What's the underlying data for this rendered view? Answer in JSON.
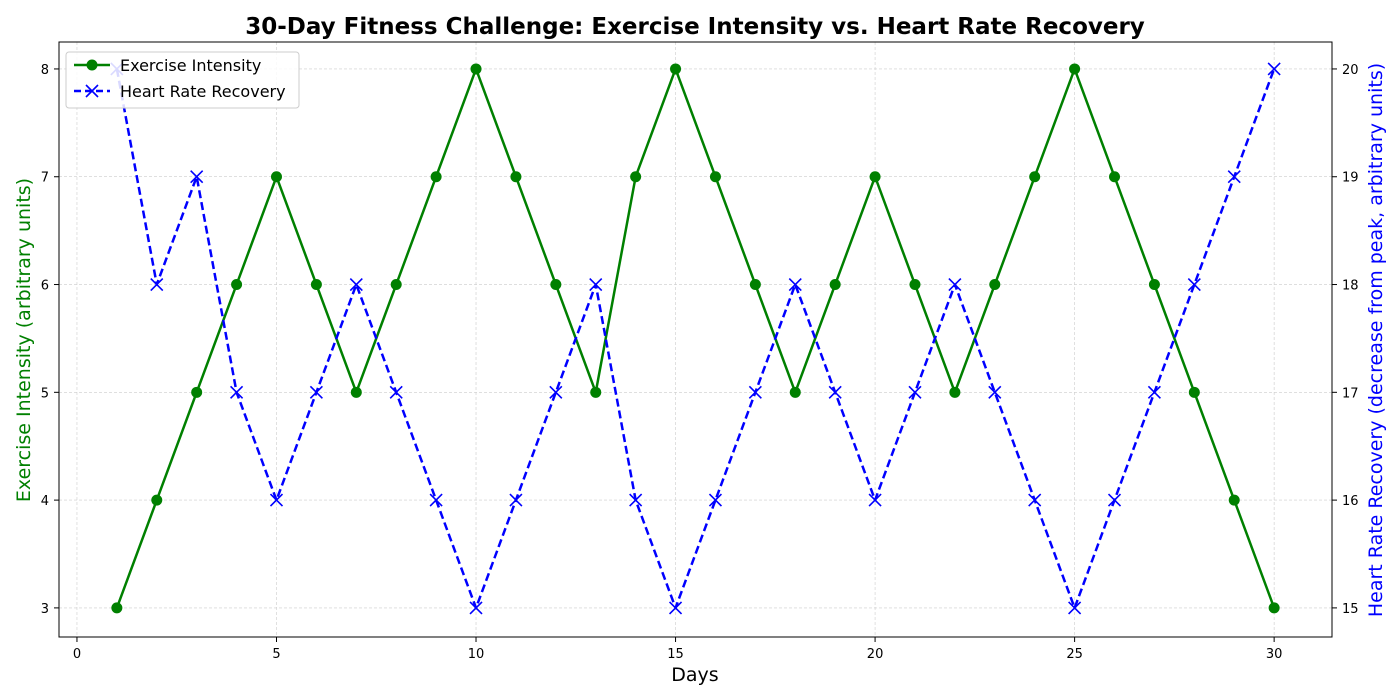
{
  "chart_data": {
    "type": "line",
    "title": "30-Day Fitness Challenge: Exercise Intensity vs. Heart Rate Recovery",
    "xlabel": "Days",
    "ylabel": "Exercise Intensity (arbitrary units)",
    "ylabel_right": "Heart Rate Recovery (decrease from peak, arbitrary units)",
    "x": [
      1,
      2,
      3,
      4,
      5,
      6,
      7,
      8,
      9,
      10,
      11,
      12,
      13,
      14,
      15,
      16,
      17,
      18,
      19,
      20,
      21,
      22,
      23,
      24,
      25,
      26,
      27,
      28,
      29,
      30
    ],
    "xlim": [
      -0.45,
      31.45
    ],
    "xticks": [
      0,
      5,
      10,
      15,
      20,
      25,
      30
    ],
    "ylim": [
      2.73,
      8.25
    ],
    "yticks": [
      3,
      4,
      5,
      6,
      7,
      8
    ],
    "ylim_right": [
      14.73,
      20.25
    ],
    "yticks_right": [
      15,
      16,
      17,
      18,
      19,
      20
    ],
    "grid": true,
    "legend_position": "upper-left",
    "series": [
      {
        "name": "Exercise Intensity",
        "axis": "left",
        "color": "#008000",
        "line_style": "solid",
        "marker": "circle",
        "values": [
          3,
          4,
          5,
          6,
          7,
          6,
          5,
          6,
          7,
          8,
          7,
          6,
          5,
          7,
          8,
          7,
          6,
          5,
          6,
          7,
          6,
          5,
          6,
          7,
          8,
          7,
          6,
          5,
          4,
          3
        ]
      },
      {
        "name": "Heart Rate Recovery",
        "axis": "right",
        "color": "#0000ff",
        "line_style": "dashed",
        "marker": "x",
        "values": [
          20,
          18,
          19,
          17,
          16,
          17,
          18,
          17,
          16,
          15,
          16,
          17,
          18,
          16,
          15,
          16,
          17,
          18,
          17,
          16,
          17,
          18,
          17,
          16,
          15,
          16,
          17,
          18,
          19,
          20
        ]
      }
    ]
  },
  "colors": {
    "left_axis_label": "#008000",
    "right_axis_label": "#0000ff",
    "grid": "#cccccc"
  }
}
